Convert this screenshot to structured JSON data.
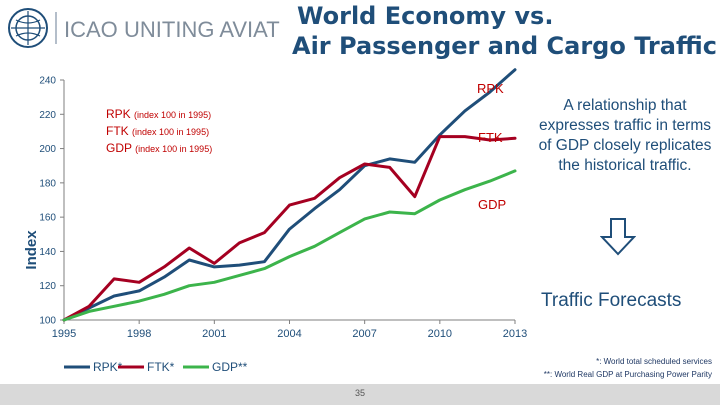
{
  "header": {
    "logo": {
      "icon": "icao-emblem-icon",
      "org": "ICAO",
      "slogan": "UNITING AVIATION"
    },
    "title_line1": "World Economy vs.",
    "title_line2": "Air Passenger and Cargo Traffic"
  },
  "chart_data": {
    "type": "line",
    "ylabel": "Index",
    "ylim": [
      100,
      240
    ],
    "yticks": [
      "100",
      "120",
      "140",
      "160",
      "180",
      "200",
      "220",
      "240"
    ],
    "x_ticks": [
      "1995",
      "1998",
      "2001",
      "2004",
      "2007",
      "2010",
      "2013"
    ],
    "x": [
      1995,
      1996,
      1997,
      1998,
      1999,
      2000,
      2001,
      2002,
      2003,
      2004,
      2005,
      2006,
      2007,
      2008,
      2009,
      2010,
      2011,
      2012,
      2013
    ],
    "series": [
      {
        "name": "RPK",
        "color": "#1f4e79",
        "values": [
          100,
          107,
          114,
          117,
          125,
          135,
          131,
          132,
          134,
          153,
          165,
          176,
          190,
          194,
          192,
          208,
          222,
          233,
          246
        ]
      },
      {
        "name": "FTK",
        "color": "#a50021",
        "values": [
          100,
          108,
          124,
          122,
          131,
          142,
          133,
          145,
          151,
          167,
          171,
          183,
          191,
          189,
          172,
          207,
          207,
          205,
          206
        ]
      },
      {
        "name": "GDP",
        "color": "#3cb44b",
        "values": [
          100,
          105,
          108,
          111,
          115,
          120,
          122,
          126,
          130,
          137,
          143,
          151,
          159,
          163,
          162,
          170,
          176,
          181,
          187
        ]
      }
    ],
    "inline_labels": {
      "rpk": "RPK",
      "ftk": "FTK",
      "gdp": "GDP"
    },
    "index_notes": [
      {
        "name": "RPK",
        "note": "(index 100 in 1995)"
      },
      {
        "name": "FTK",
        "note": "(index 100 in 1995)"
      },
      {
        "name": "GDP",
        "note": "(index 100 in 1995)"
      }
    ],
    "legend": [
      "RPK*",
      "FTK*",
      "GDP**"
    ],
    "legend_position": "bottom",
    "grid": false
  },
  "side": {
    "text": "A relationship that expresses traffic in terms of GDP closely replicates the historical traffic.",
    "arrow_icon": "down-arrow-icon",
    "forecast_label": "Traffic Forecasts"
  },
  "footnotes": {
    "line1": "*: World total scheduled services",
    "line2": "**: World Real GDP at Purchasing Power Parity"
  },
  "page_number": "35"
}
